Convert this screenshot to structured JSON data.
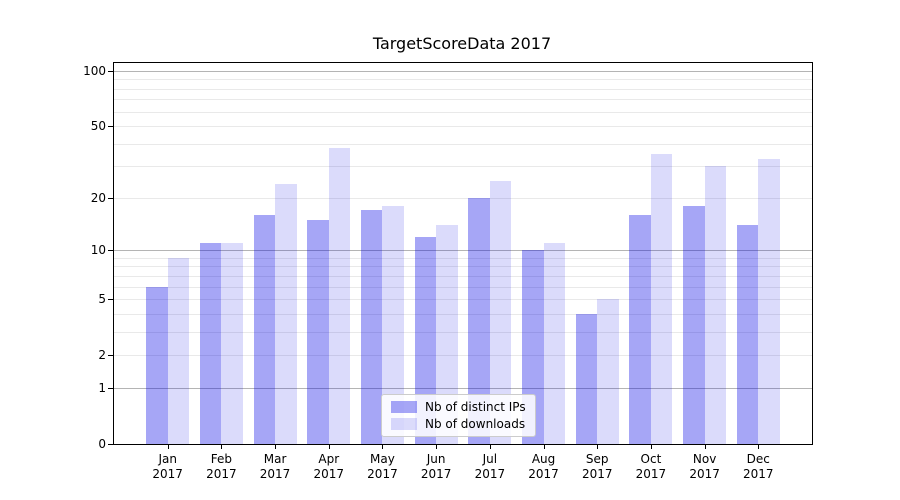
{
  "title": "TargetScoreData 2017",
  "chart_data": {
    "type": "bar",
    "title": "TargetScoreData 2017",
    "categories": [
      "Jan",
      "Feb",
      "Mar",
      "Apr",
      "May",
      "Jun",
      "Jul",
      "Aug",
      "Sep",
      "Oct",
      "Nov",
      "Dec"
    ],
    "x_tick_second_line": "2017",
    "series": [
      {
        "name": "Nb of distinct IPs",
        "color": "rgba(0,0,230,0.35)",
        "color_hex_on_white": "#a6a6f7",
        "values": [
          6,
          11,
          16,
          15,
          17,
          12,
          20,
          10,
          4,
          16,
          18,
          14
        ]
      },
      {
        "name": "Nb of downloads",
        "color": "rgba(0,0,230,0.14)",
        "color_hex_on_white": "#dbdbfc",
        "values": [
          9,
          11,
          24,
          38,
          18,
          14,
          25,
          11,
          5,
          35,
          30,
          33
        ]
      }
    ],
    "xlabel": "",
    "ylabel": "",
    "y_scale": "log1p",
    "y_axis_ticks": [
      100,
      50,
      20,
      10,
      5,
      2,
      1,
      0
    ],
    "y_tick_labels": [
      "100",
      "50",
      "20",
      "10",
      "5",
      "2",
      "1",
      "0"
    ],
    "y_major_gridlines": [
      1,
      10,
      100
    ],
    "y_minor_gridlines": [
      2,
      3,
      4,
      5,
      6,
      7,
      8,
      9,
      20,
      30,
      40,
      50,
      60,
      70,
      80,
      90
    ],
    "ylim": [
      0,
      112
    ],
    "grid": true,
    "legend_position": "lower center",
    "colors": {
      "major_gridline": "#b4b4b4",
      "minor_gridline": "#e9e9e9",
      "axis_spine": "#000000",
      "background": "#ffffff",
      "text": "#000000"
    }
  }
}
